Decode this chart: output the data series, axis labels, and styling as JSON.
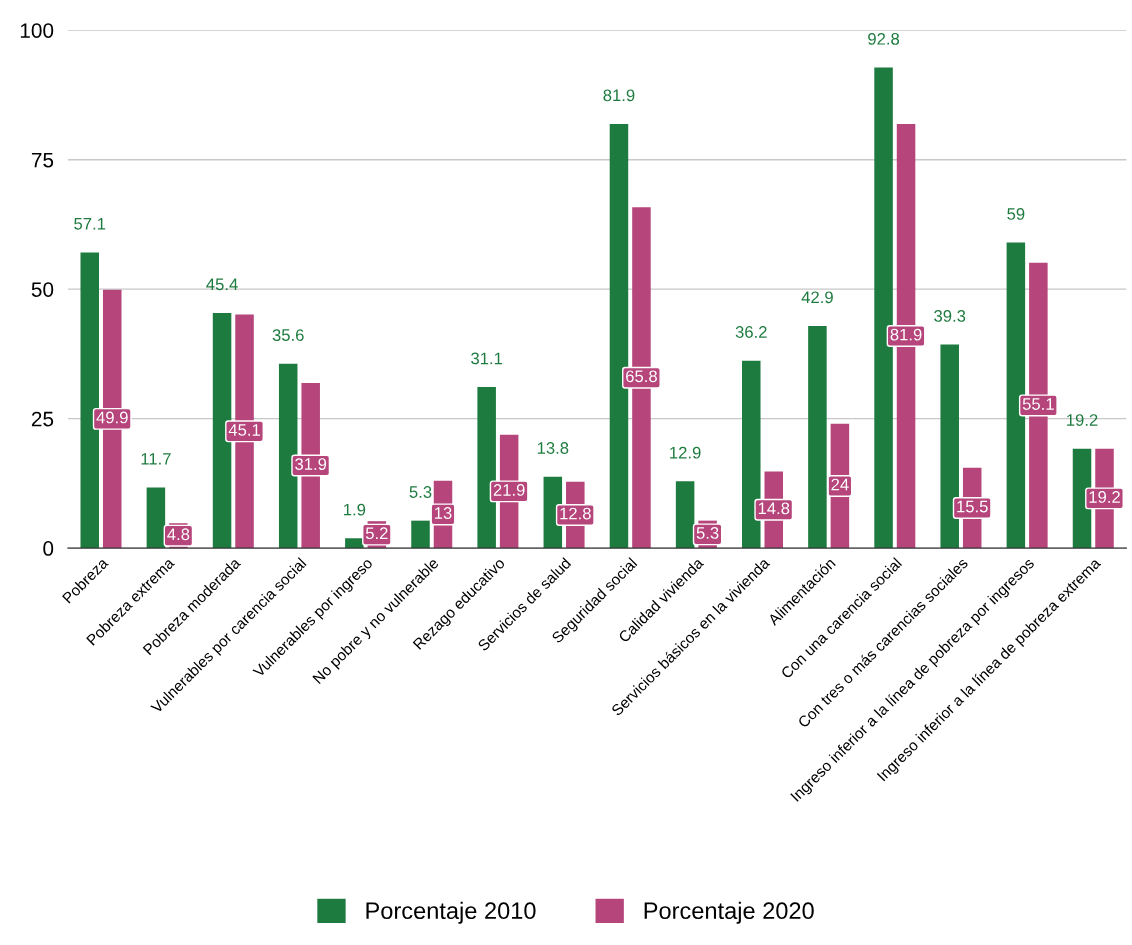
{
  "chart_data": {
    "type": "bar",
    "categories": [
      "Pobreza",
      "Pobreza extrema",
      "Pobreza moderada",
      "Vulnerables por carencia social",
      "Vulnerables por ingreso",
      "No pobre y no vulnerable",
      "Rezago educativo",
      "Servicios de salud",
      "Seguridad social",
      "Calidad vivienda",
      "Servicios básicos en la vivienda",
      "Alimentación",
      "Con una carencia social",
      "Con tres o más carencias sociales",
      "Ingreso inferior a la línea de pobreza por ingresos",
      "Ingreso inferior a la línea de pobreza extrema"
    ],
    "series": [
      {
        "name": "Porcentaje 2010",
        "color": "#1e7b3f",
        "values": [
          57.1,
          11.7,
          45.4,
          35.6,
          1.9,
          5.3,
          31.1,
          13.8,
          81.9,
          12.9,
          36.2,
          42.9,
          92.8,
          39.3,
          59,
          19.2
        ]
      },
      {
        "name": "Porcentaje 2020",
        "color": "#b5457b",
        "values": [
          49.9,
          4.8,
          45.1,
          31.9,
          5.2,
          13,
          21.9,
          12.8,
          65.8,
          5.3,
          14.8,
          24,
          81.9,
          15.5,
          55.1,
          19.2
        ]
      }
    ],
    "ylim": [
      0,
      100
    ],
    "yticks": [
      0,
      25,
      50,
      75,
      100
    ],
    "grid": "y",
    "legend": "bottom",
    "data_labels": true
  }
}
